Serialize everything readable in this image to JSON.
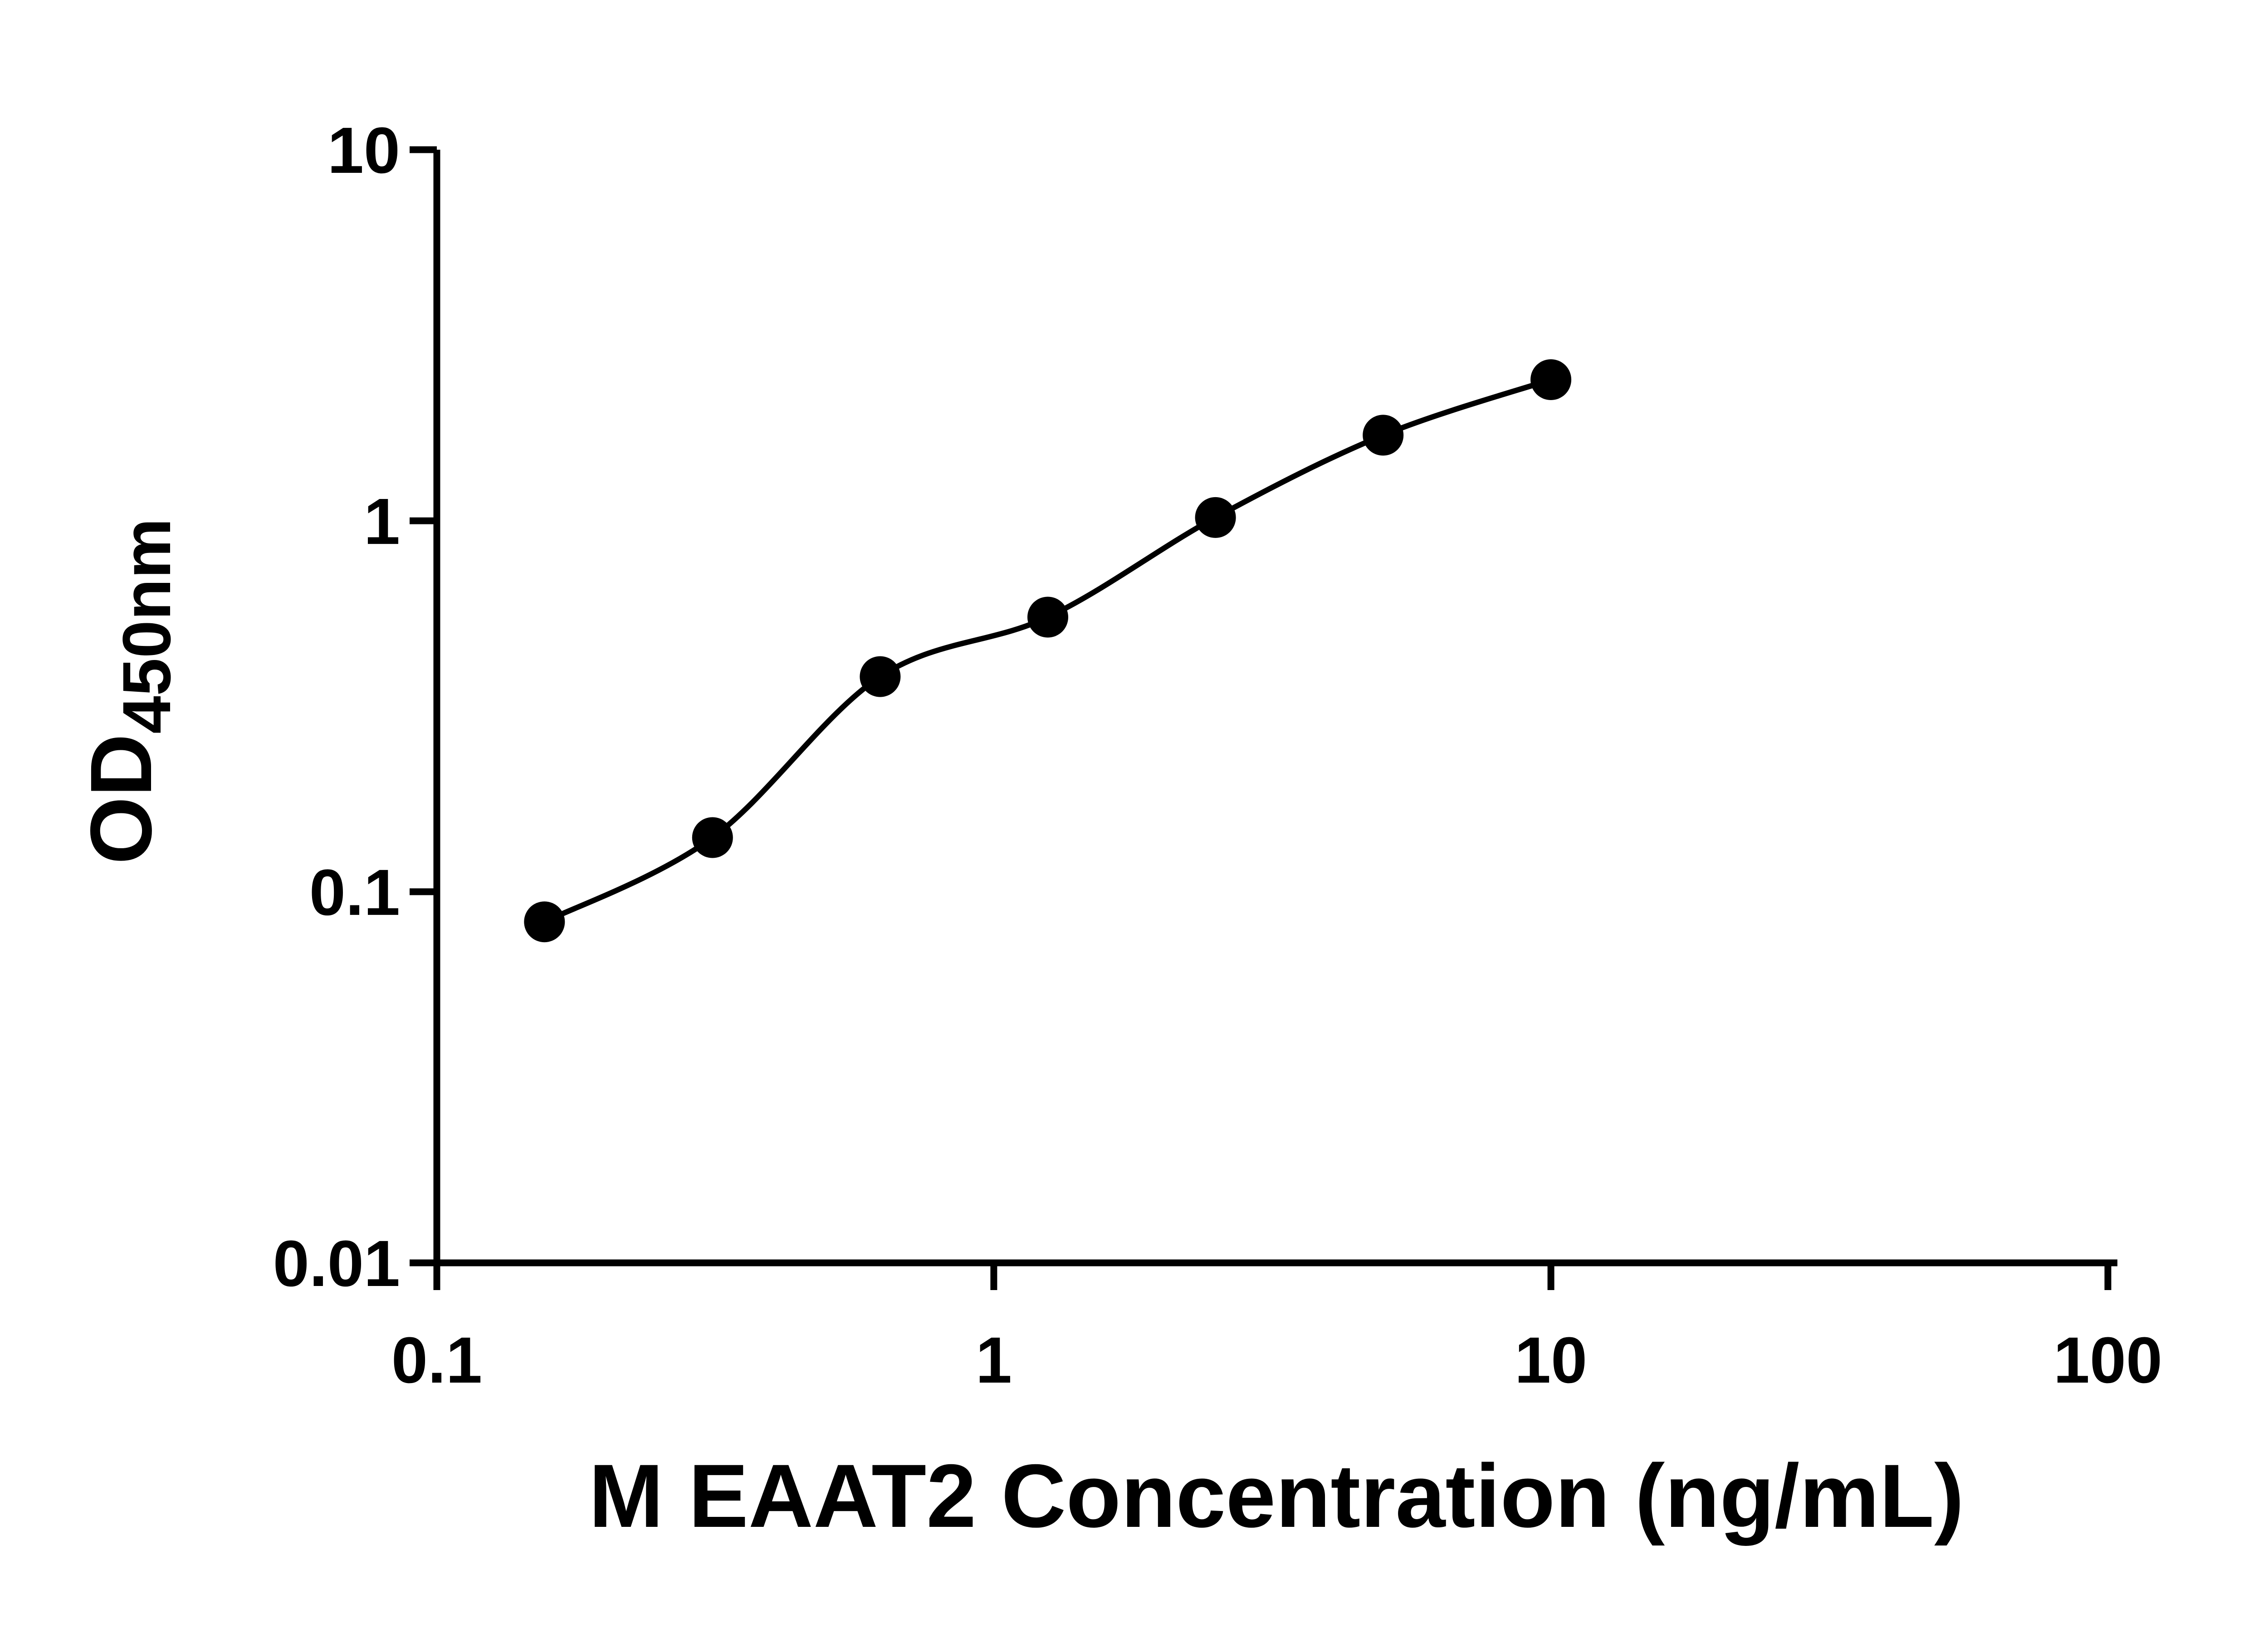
{
  "figure": {
    "background": "#ffffff"
  },
  "chart_data": {
    "type": "scatter",
    "subtype": "standard-curve-with-smooth-fit-line",
    "xlabel": "M EAAT2 Concentration (ng/mL)",
    "ylabel_main": "OD",
    "ylabel_sub": "450nm",
    "x_scale": "log",
    "y_scale": "log",
    "xlim": [
      0.1,
      100
    ],
    "ylim": [
      0.01,
      10
    ],
    "grid": false,
    "legend": false,
    "axis_color": "#000000",
    "x_ticks": [
      {
        "value": 0.1,
        "label": "0.1"
      },
      {
        "value": 1,
        "label": "1"
      },
      {
        "value": 10,
        "label": "10"
      },
      {
        "value": 100,
        "label": "100"
      }
    ],
    "y_ticks": [
      {
        "value": 0.01,
        "label": "0.01"
      },
      {
        "value": 0.1,
        "label": "0.1"
      },
      {
        "value": 1,
        "label": "1"
      },
      {
        "value": 10,
        "label": "10"
      }
    ],
    "series": [
      {
        "marker": "filled-circle",
        "color": "#000000",
        "line": "smooth",
        "points": [
          {
            "x": 0.156,
            "y": 0.083
          },
          {
            "x": 0.3125,
            "y": 0.14
          },
          {
            "x": 0.625,
            "y": 0.38
          },
          {
            "x": 1.25,
            "y": 0.55
          },
          {
            "x": 2.5,
            "y": 1.02
          },
          {
            "x": 5,
            "y": 1.7
          },
          {
            "x": 10,
            "y": 2.4
          }
        ]
      }
    ]
  }
}
